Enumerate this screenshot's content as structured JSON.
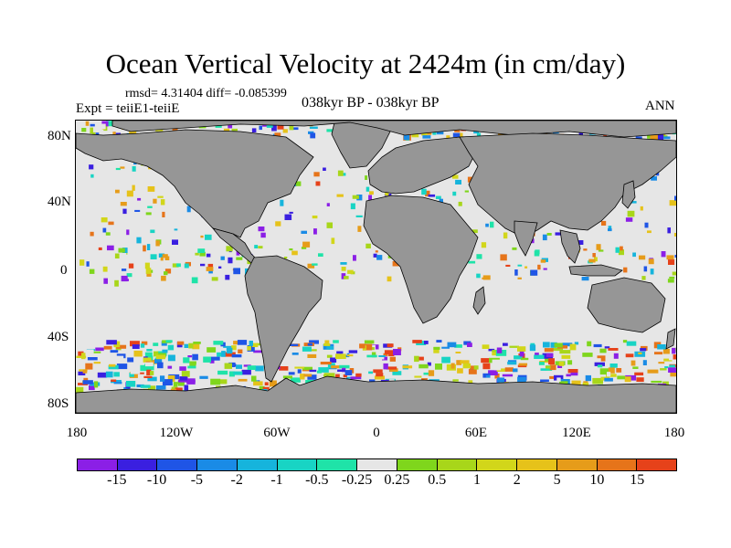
{
  "title": "Ocean Vertical Velocity at 2424m (in cm/day)",
  "stats_text": "rmsd= 4.31404 diff= -0.085399",
  "experiment_text": "Expt = teiiE1-teiiE",
  "period_text": "038kyr BP - 038kyr BP",
  "season_text": "ANN",
  "lat_ticks": [
    "80N",
    "40N",
    "0",
    "40S",
    "80S"
  ],
  "lon_ticks": [
    "180",
    "120W",
    "60W",
    "0",
    "60E",
    "120E",
    "180"
  ],
  "colorbar": {
    "colors": [
      "#8b1fe6",
      "#3a1fe0",
      "#1f55e6",
      "#1a8be6",
      "#16b4dc",
      "#18d4c4",
      "#1fe3a8",
      "#e6e6e6",
      "#7fd61c",
      "#a8d61a",
      "#d2d61a",
      "#e6c21a",
      "#e69c1a",
      "#e6741a",
      "#e6421a"
    ],
    "labels": [
      "-15",
      "-10",
      "-5",
      "-2",
      "-1",
      "-0.5",
      "-0.25",
      "0.25",
      "0.5",
      "1",
      "2",
      "5",
      "10",
      "15"
    ]
  },
  "colors": {
    "land": "#969696",
    "near_zero": "#e6e6e6",
    "coastline": "#000000"
  }
}
